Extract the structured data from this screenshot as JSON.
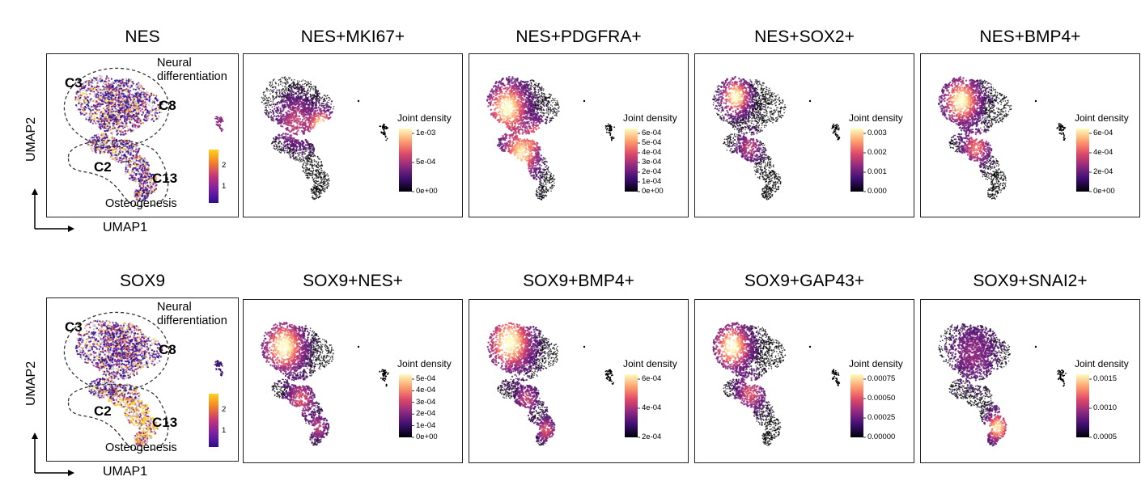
{
  "rows": [
    {
      "gene_panel": {
        "title": "NES",
        "clusters": {
          "c3": "C3",
          "c8": "C8",
          "c2": "C2",
          "c13": "C13"
        },
        "label_neural": "Neural\ndifferentiation",
        "label_osteo": "Osteogenesis",
        "scale_ticks": [
          "2",
          "1"
        ]
      },
      "axis": {
        "x": "UMAP1",
        "y": "UMAP2"
      },
      "density_panels": [
        {
          "title": "NES+MKI67+",
          "legend": "Joint density",
          "ticks": [
            "1e-03",
            "5e-04",
            "0e+00"
          ]
        },
        {
          "title": "NES+PDGFRA+",
          "legend": "Joint density",
          "ticks": [
            "6e-04",
            "5e-04",
            "4e-04",
            "3e-04",
            "2e-04",
            "1e-04",
            "0e+00"
          ]
        },
        {
          "title": "NES+SOX2+",
          "legend": "Joint density",
          "ticks": [
            "0.003",
            "0.002",
            "0.001",
            "0.000"
          ]
        },
        {
          "title": "NES+BMP4+",
          "legend": "Joint density",
          "ticks": [
            "6e-04",
            "4e-04",
            "2e-04",
            "0e+00"
          ]
        }
      ]
    },
    {
      "gene_panel": {
        "title": "SOX9",
        "clusters": {
          "c3": "C3",
          "c8": "C8",
          "c2": "C2",
          "c13": "C13"
        },
        "label_neural": "Neural\ndifferentiation",
        "label_osteo": "Osteogenesis",
        "scale_ticks": [
          "2",
          "1"
        ]
      },
      "axis": {
        "x": "UMAP1",
        "y": "UMAP2"
      },
      "density_panels": [
        {
          "title": "SOX9+NES+",
          "legend": "Joint density",
          "ticks": [
            "5e-04",
            "4e-04",
            "3e-04",
            "2e-04",
            "1e-04",
            "0e+00"
          ]
        },
        {
          "title": "SOX9+BMP4+",
          "legend": "Joint density",
          "ticks": [
            "6e-04",
            "4e-04",
            "2e-04"
          ]
        },
        {
          "title": "SOX9+GAP43+",
          "legend": "Joint density",
          "ticks": [
            "0.00075",
            "0.00050",
            "0.00025",
            "0.00000"
          ]
        },
        {
          "title": "SOX9+SNAI2+",
          "legend": "Joint density",
          "ticks": [
            "0.0015",
            "0.0010",
            "0.0005"
          ]
        }
      ]
    }
  ],
  "colors": {
    "magma": [
      "#000004",
      "#3b0f70",
      "#8c2981",
      "#de4968",
      "#fe9f6d",
      "#fcfdbf"
    ],
    "expression": [
      "#2c0f8f",
      "#7a1fa2",
      "#c2357b",
      "#f07f2d",
      "#ffd21f"
    ]
  }
}
